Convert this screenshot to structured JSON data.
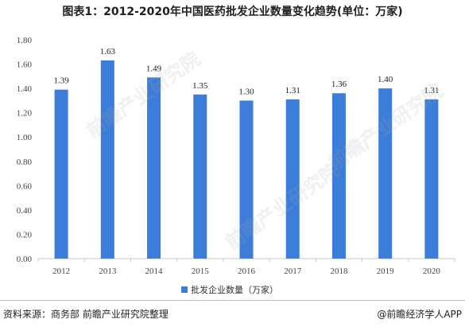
{
  "title": "图表1：2012-2020年中国医药批发企业数量变化趋势(单位：万家)",
  "source": "资料来源：商务部 前瞻产业研究院整理",
  "brand": "@前瞻经济学人APP",
  "watermark": "前瞻产业研究院",
  "chart_data": {
    "type": "bar",
    "categories": [
      "2012",
      "2013",
      "2014",
      "2015",
      "2016",
      "2017",
      "2018",
      "2019",
      "2020"
    ],
    "series": [
      {
        "name": "批发企业数量（万家）",
        "values": [
          1.39,
          1.63,
          1.49,
          1.35,
          1.3,
          1.31,
          1.36,
          1.4,
          1.31
        ]
      }
    ],
    "value_labels": [
      "1.39",
      "1.63",
      "1.49",
      "1.35",
      "1.30",
      "1.31",
      "1.36",
      "1.40",
      "1.31"
    ],
    "y_ticks": [
      "0.00",
      "0.20",
      "0.40",
      "0.60",
      "0.80",
      "1.00",
      "1.20",
      "1.40",
      "1.60",
      "1.80"
    ],
    "ylim": [
      0,
      1.8
    ],
    "grid": false,
    "legend_position": "bottom",
    "bar_color": "#3b7dd8"
  }
}
